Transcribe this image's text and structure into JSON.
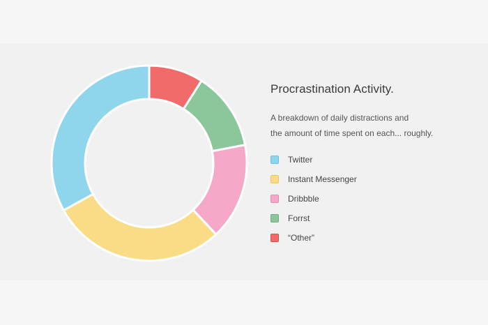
{
  "chart_data": {
    "type": "pie",
    "title": "Procrastination Activity.",
    "subtitle_lines": [
      "A breakdown of daily distractions and",
      "the amount of time spent on each... roughly."
    ],
    "legend_position": "right",
    "categories": [
      "Twitter",
      "Instant Messenger",
      "Dribbble",
      "Forrst",
      "“Other”"
    ],
    "values": [
      33,
      29,
      16,
      13,
      9
    ],
    "slice_order_clockwise_from_top": [
      "“Other”",
      "Forrst",
      "Dribbble",
      "Instant Messenger",
      "Twitter"
    ],
    "colors": {
      "Twitter": "#8fd5ec",
      "Instant Messenger": "#fbdc86",
      "Dribbble": "#f6a8c8",
      "Forrst": "#8cc79b",
      "“Other”": "#f26b6b"
    },
    "stroke_colors": {
      "Twitter": "#6ebfdc",
      "Instant Messenger": "#edc561",
      "Dribbble": "#e48cb0",
      "Forrst": "#6fae80",
      "“Other”": "#dc4e4e"
    }
  }
}
